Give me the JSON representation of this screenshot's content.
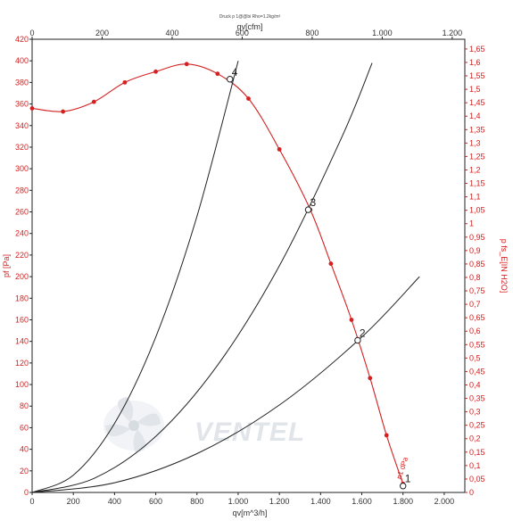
{
  "chart_data": {
    "type": "line",
    "title": "Druck p 1@@bi Rho=1.2kg/m³",
    "watermark": "VENTEL",
    "x_axis_bottom": {
      "label": "qv[m^3/h]",
      "ticks": [
        "0",
        "200",
        "400",
        "600",
        "800",
        "1.000",
        "1.200",
        "1.400",
        "1.600",
        "1.800",
        "2.000"
      ],
      "range": [
        0,
        2100
      ]
    },
    "x_axis_top": {
      "label": "qv[cfm]",
      "ticks": [
        "0",
        "200",
        "400",
        "600",
        "800",
        "1.000",
        "1.200"
      ],
      "range": [
        0,
        1236
      ]
    },
    "y_axis_left": {
      "label": "pf [Pa]",
      "ticks": [
        "0",
        "20",
        "40",
        "60",
        "80",
        "100",
        "120",
        "140",
        "160",
        "180",
        "200",
        "220",
        "240",
        "260",
        "280",
        "300",
        "320",
        "340",
        "360",
        "380",
        "400",
        "420"
      ],
      "range": [
        0,
        420
      ]
    },
    "y_axis_right": {
      "label": "p fs_E[IN H2O]",
      "ticks": [
        "0",
        "0,05",
        "0,1",
        "0,15",
        "0,2",
        "0,25",
        "0,3",
        "0,35",
        "0,4",
        "0,45",
        "0,5",
        "0,55",
        "0,6",
        "0,65",
        "0,7",
        "0,75",
        "0,8",
        "0,85",
        "0,9",
        "0,95",
        "1",
        "1,05",
        "1,1",
        "1,15",
        "1,2",
        "1,25",
        "1,3",
        "1,35",
        "1,4",
        "1,45",
        "1,5",
        "1,55",
        "1,6",
        "1,65"
      ],
      "range": [
        0,
        1.6862
      ]
    },
    "grid": false,
    "series": [
      {
        "name": "",
        "color": "#d42020",
        "marker": "dot",
        "x": [
          0,
          150,
          300,
          450,
          600,
          750,
          900,
          1050,
          1200,
          1350,
          1450,
          1550,
          1640,
          1720,
          1800
        ],
        "y": [
          356,
          353,
          362,
          380,
          390,
          397,
          388,
          365,
          318,
          262,
          212,
          160,
          106,
          53,
          8
        ]
      },
      {
        "name": "",
        "color": "#222222",
        "marker": "none",
        "x": [
          0,
          200,
          400,
          600,
          800,
          1000
        ],
        "y": [
          0,
          16,
          64,
          144,
          256,
          400
        ]
      },
      {
        "name": "",
        "color": "#222222",
        "marker": "none",
        "x": [
          0,
          300,
          600,
          900,
          1200,
          1500,
          1650
        ],
        "y": [
          0,
          13,
          52,
          118,
          210,
          328,
          398
        ]
      },
      {
        "name": "",
        "color": "#222222",
        "marker": "none",
        "x": [
          0,
          400,
          800,
          1200,
          1600,
          1880
        ],
        "y": [
          0,
          9,
          36,
          81,
          144,
          200
        ]
      }
    ],
    "operating_points": [
      {
        "label": "4",
        "x": 960,
        "y": 383
      },
      {
        "label": "3",
        "x": 1340,
        "y": 262
      },
      {
        "label": "2",
        "x": 1580,
        "y": 141
      },
      {
        "label": "1",
        "x": 1800,
        "y": 6
      }
    ],
    "annotations": [
      {
        "text": "p1 dPa",
        "x": 1790,
        "y": 12
      }
    ]
  }
}
